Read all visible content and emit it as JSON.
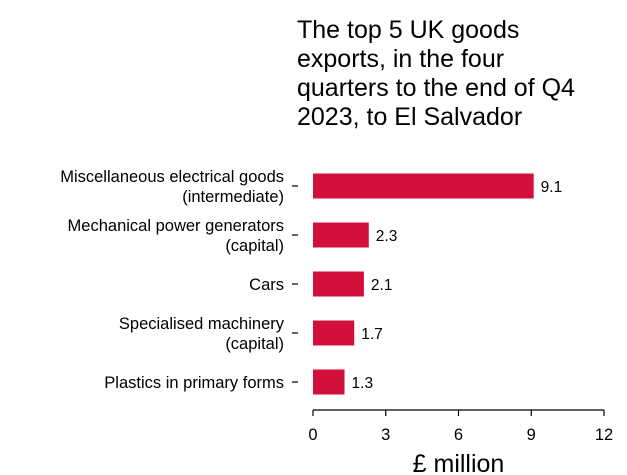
{
  "chart_data": {
    "type": "bar",
    "orientation": "horizontal",
    "title_lines": [
      "The top 5 UK goods",
      "exports, in the four",
      "quarters to the end of Q4",
      "2023, to El Salvador"
    ],
    "categories": [
      [
        "Miscellaneous electrical goods",
        "(intermediate)"
      ],
      [
        "Mechanical power generators",
        "(capital)"
      ],
      [
        "Cars"
      ],
      [
        "Specialised machinery",
        "(capital)"
      ],
      [
        "Plastics in primary forms"
      ]
    ],
    "values": [
      9.1,
      2.3,
      2.1,
      1.7,
      1.3
    ],
    "value_labels": [
      "9.1",
      "2.3",
      "2.1",
      "1.7",
      "1.3"
    ],
    "xlabel": "£ million",
    "ylabel": "",
    "xlim": [
      0,
      12
    ],
    "xticks": [
      0,
      3,
      6,
      9,
      12
    ],
    "bar_color": "#d0103a",
    "grid": false,
    "legend": "none"
  }
}
